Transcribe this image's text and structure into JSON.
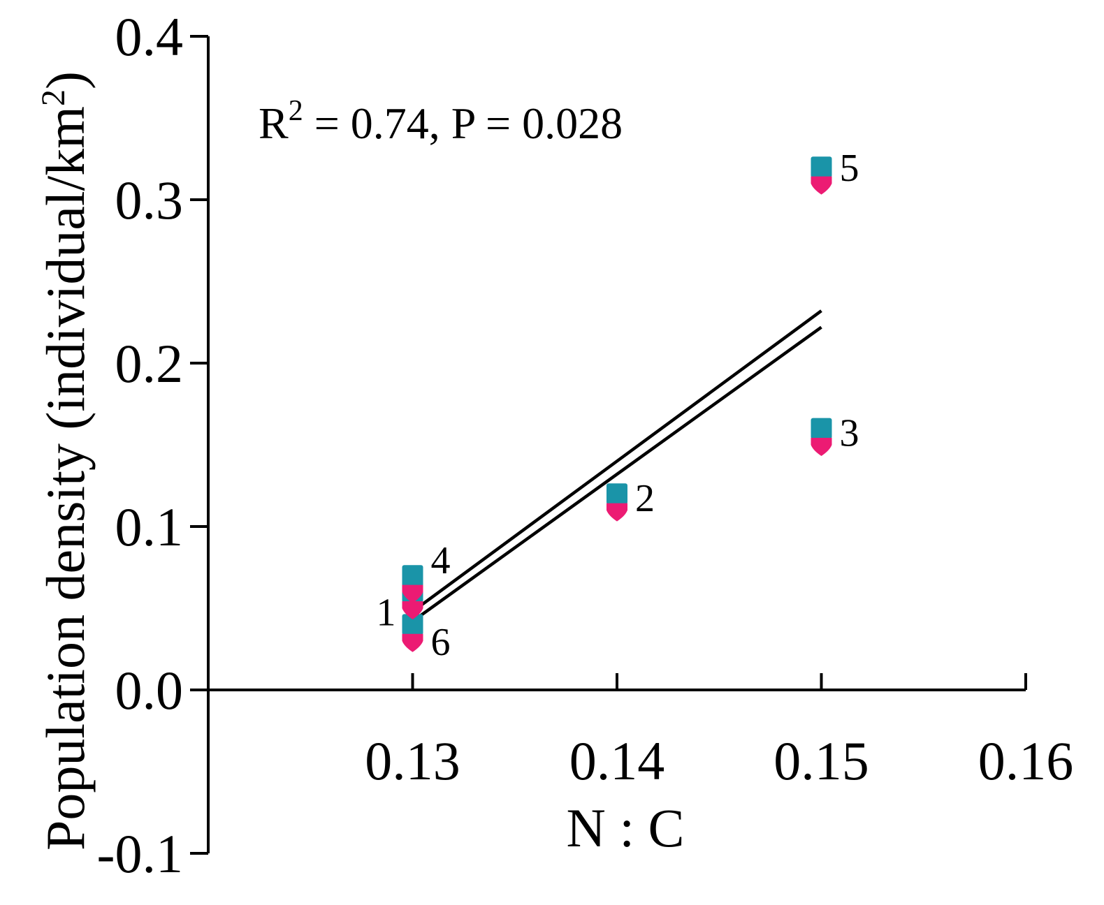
{
  "chart_data": {
    "type": "scatter",
    "title": "",
    "xlabel": "N : C",
    "ylabel": {
      "main": "Population density (individual/km",
      "sup": "2",
      "close": ")"
    },
    "annotation": {
      "r_prefix": "R",
      "r_sup": "2",
      "rest": " = 0.74, P = 0.028"
    },
    "xlim": [
      0.12,
      0.16
    ],
    "ylim": [
      -0.1,
      0.4
    ],
    "x_ticks": [
      {
        "value": 0.13,
        "label": "0.13"
      },
      {
        "value": 0.14,
        "label": "0.14"
      },
      {
        "value": 0.15,
        "label": "0.15"
      },
      {
        "value": 0.16,
        "label": "0.16"
      }
    ],
    "y_ticks": [
      {
        "value": -0.1,
        "label": "-0.1"
      },
      {
        "value": 0.0,
        "label": "0.0"
      },
      {
        "value": 0.1,
        "label": "0.1"
      },
      {
        "value": 0.2,
        "label": "0.2"
      },
      {
        "value": 0.3,
        "label": "0.3"
      },
      {
        "value": 0.4,
        "label": "0.4"
      }
    ],
    "grid": false,
    "legend": "none",
    "series": [
      {
        "marker": "square",
        "color": "#1a94a8",
        "points": [
          {
            "label": "1",
            "x": 0.13,
            "y": 0.06
          },
          {
            "label": "2",
            "x": 0.14,
            "y": 0.12
          },
          {
            "label": "3",
            "x": 0.15,
            "y": 0.16
          },
          {
            "label": "4",
            "x": 0.13,
            "y": 0.07
          },
          {
            "label": "5",
            "x": 0.15,
            "y": 0.32
          },
          {
            "label": "6",
            "x": 0.13,
            "y": 0.04
          }
        ]
      },
      {
        "marker": "drop",
        "color": "#ec1b73",
        "points": [
          {
            "label": "1",
            "x": 0.13,
            "y": 0.05
          },
          {
            "label": "2",
            "x": 0.14,
            "y": 0.11
          },
          {
            "label": "3",
            "x": 0.15,
            "y": 0.15
          },
          {
            "label": "4",
            "x": 0.13,
            "y": 0.06
          },
          {
            "label": "5",
            "x": 0.15,
            "y": 0.31
          },
          {
            "label": "6",
            "x": 0.13,
            "y": 0.03
          }
        ]
      }
    ],
    "fit_lines": [
      {
        "x": [
          0.13,
          0.15
        ],
        "y": [
          0.048,
          0.232
        ]
      },
      {
        "x": [
          0.13,
          0.15
        ],
        "y": [
          0.042,
          0.222
        ]
      }
    ],
    "point_labels": [
      {
        "text": "1",
        "x": 0.13,
        "y": 0.048,
        "side": "left"
      },
      {
        "text": "2",
        "x": 0.14,
        "y": 0.118,
        "side": "right"
      },
      {
        "text": "3",
        "x": 0.15,
        "y": 0.158,
        "side": "right"
      },
      {
        "text": "4",
        "x": 0.13,
        "y": 0.08,
        "side": "right"
      },
      {
        "text": "5",
        "x": 0.15,
        "y": 0.32,
        "side": "right"
      },
      {
        "text": "6",
        "x": 0.13,
        "y": 0.03,
        "side": "right"
      }
    ]
  }
}
